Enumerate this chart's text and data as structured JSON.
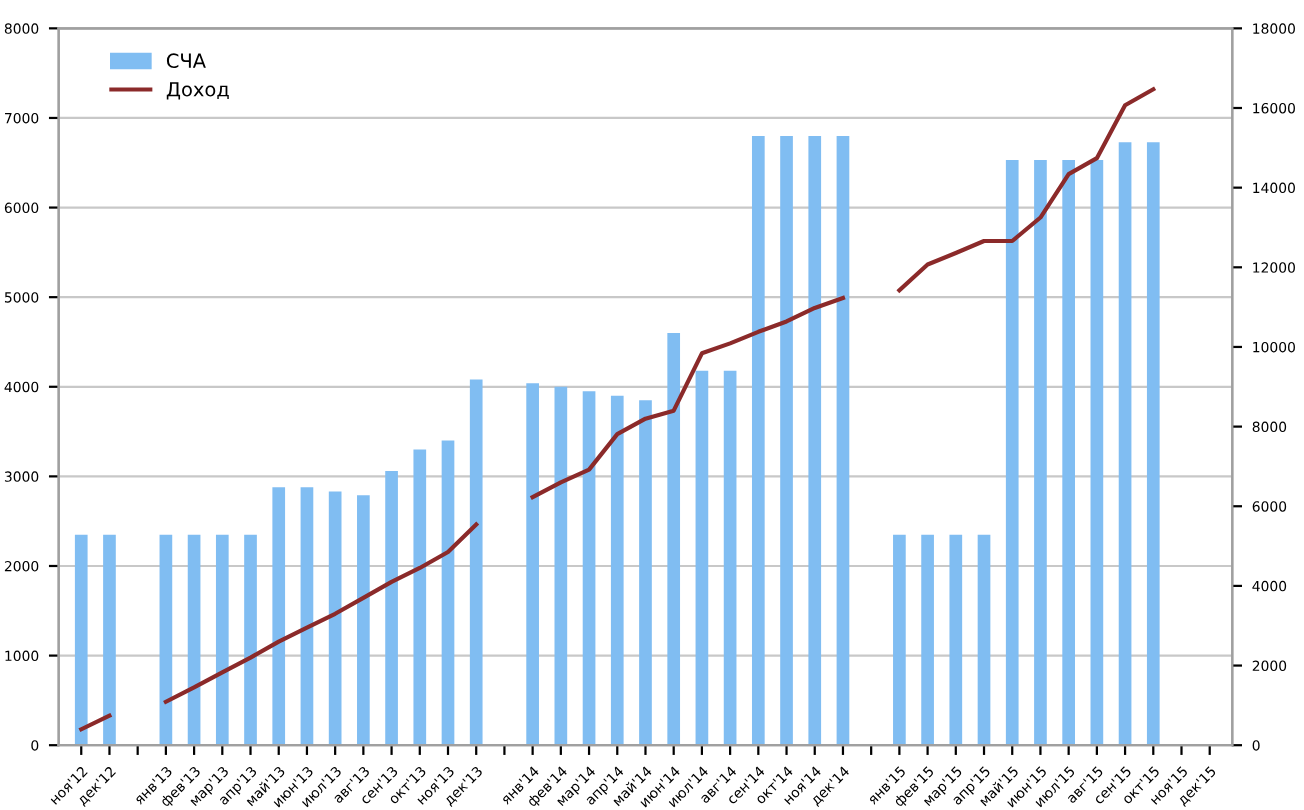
{
  "chart_data": {
    "type": "bar",
    "categories": [
      "ноя'12",
      "дек'12",
      null,
      "янв'13",
      "фев'13",
      "мар'13",
      "апр'13",
      "май'13",
      "июн'13",
      "июл'13",
      "авг'13",
      "сен'13",
      "окт'13",
      "ноя'13",
      "дек'13",
      null,
      "янв'14",
      "фев'14",
      "мар'14",
      "апр'14",
      "май'14",
      "июн'14",
      "июл'14",
      "авг'14",
      "сен'14",
      "окт'14",
      "ноя'14",
      "дек'14",
      null,
      "янв'15",
      "фев'15",
      "мар'15",
      "апр'15",
      "май'15",
      "июн'15",
      "июл'15",
      "авг'15",
      "сен'15",
      "окт'15",
      "ноя'15",
      "дек'15"
    ],
    "series": [
      {
        "name": "СЧА",
        "color": "#80bdf2",
        "values": [
          2350,
          2350,
          null,
          2350,
          2350,
          2350,
          2350,
          2880,
          2880,
          2830,
          2790,
          3060,
          3300,
          3400,
          4080,
          null,
          4040,
          4000,
          3950,
          3900,
          3850,
          4600,
          4180,
          4180,
          6800,
          6800,
          6800,
          6800,
          null,
          2350,
          2350,
          2350,
          2350,
          6530,
          6530,
          6530,
          6530,
          6730,
          6730,
          null,
          null
        ]
      },
      {
        "name": "Доход",
        "type": "line",
        "axis": "y2",
        "color": "#8b2a2a",
        "values": [
          400,
          740,
          null,
          1090,
          1450,
          1830,
          2200,
          2600,
          2950,
          3300,
          3700,
          4100,
          4450,
          4850,
          5540,
          null,
          6230,
          6600,
          6920,
          7810,
          8200,
          8400,
          9840,
          10090,
          10380,
          10640,
          10980,
          11230,
          null,
          11420,
          12070,
          12360,
          12660,
          12660,
          13250,
          14340,
          14740,
          16070,
          16470,
          null,
          null
        ]
      }
    ],
    "ylim": [
      0,
      8000
    ],
    "yticks": [
      0,
      1000,
      2000,
      3000,
      4000,
      5000,
      6000,
      7000,
      8000
    ],
    "y2lim": [
      0,
      18000
    ],
    "y2ticks": [
      0,
      2000,
      4000,
      6000,
      8000,
      10000,
      12000,
      14000,
      16000,
      18000
    ],
    "grid": "y",
    "legend": "top left",
    "marker": "none",
    "line_style": "solid"
  }
}
